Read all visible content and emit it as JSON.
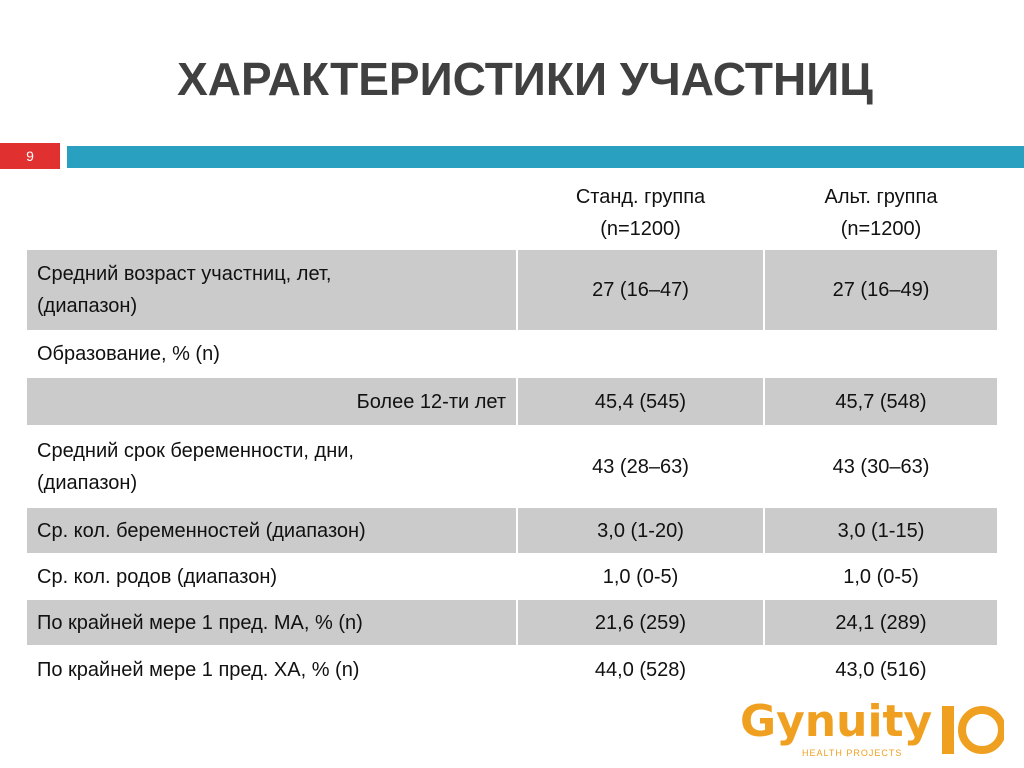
{
  "slide": {
    "title": "ХАРАКТЕРИСТИКИ УЧАСТНИЦ",
    "number": "9"
  },
  "table": {
    "header": [
      "Станд. группа\n(n=1200)",
      "Альт. группа\n(n=1200)"
    ],
    "rows": [
      [
        "Средний возраст участниц, лет,\n(диапазон)",
        "27 (16–47)",
        "27 (16–49)"
      ],
      [
        "Образование, % (n)",
        "",
        ""
      ],
      [
        "Более 12-ти лет",
        "45,4 (545)",
        "45,7 (548)"
      ],
      [
        "Средний срок беременности, дни,\n(диапазон)",
        "43 (28–63)",
        "43 (30–63)"
      ],
      [
        "Ср. кол. беременностей (диапазон)",
        "3,0 (1-20)",
        "3,0 (1-15)"
      ],
      [
        "Ср. кол. родов (диапазон)",
        "1,0 (0-5)",
        "1,0 (0-5)"
      ],
      [
        "По крайней мере 1 пред.  МА, % (n)",
        "21,6 (259)",
        "24,1 (289)"
      ],
      [
        "По крайней мере 1 пред.  ХА, % (n)",
        "44,0 (528)",
        "43,0 (516)"
      ]
    ]
  },
  "logo": {
    "name": "Gynuity",
    "tagline": "HEALTH PROJECTS"
  }
}
